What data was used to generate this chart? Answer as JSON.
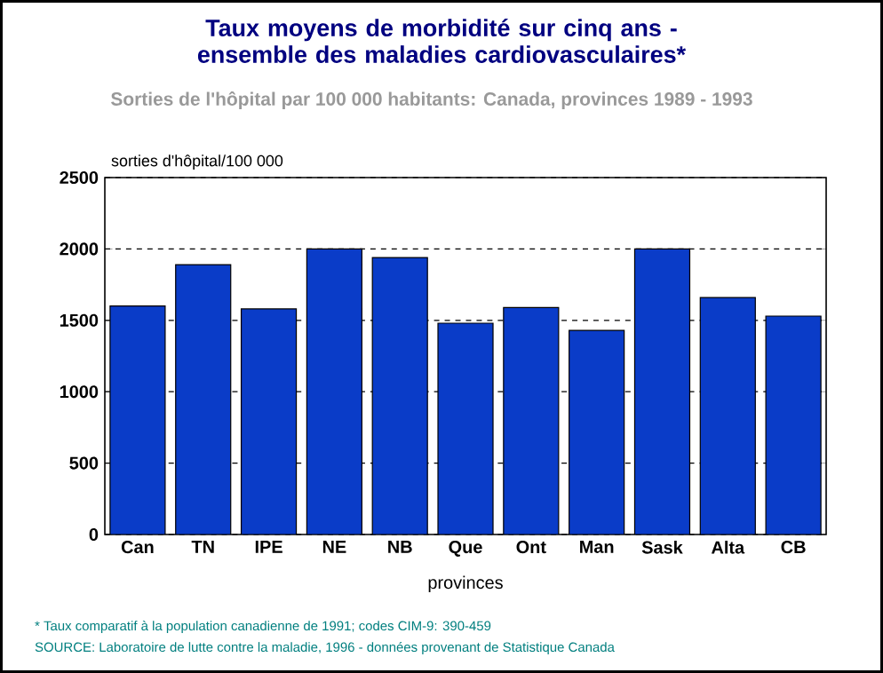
{
  "chart_data": {
    "type": "bar",
    "title": "Taux moyens de morbidité sur cinq ans - ensemble des maladies cardiovasculaires*",
    "subtitle": "Sorties de l'hôpital par 100 000 habitants: Canada, provinces 1989 - 1993",
    "ylabel": "sorties d'hôpital/100 000",
    "xlabel": "provinces",
    "categories": [
      "Can",
      "TN",
      "IPE",
      "NE",
      "NB",
      "Que",
      "Ont",
      "Man",
      "Sask",
      "Alta",
      "CB"
    ],
    "values": [
      1600,
      1890,
      1580,
      2000,
      1940,
      1480,
      1590,
      1430,
      2000,
      1660,
      1530
    ],
    "color": "#0a3cc8",
    "ylim": [
      0,
      2500
    ],
    "yticks": [
      0,
      500,
      1000,
      1500,
      2000,
      2500
    ],
    "grid": "y",
    "annotations": [
      "* Taux comparatif à la population canadienne de 1991; codes CIM-9:  390-459",
      "SOURCE: Laboratoire de lutte contre la maladie, 1996 - données provenant de Statistique Canada"
    ]
  }
}
